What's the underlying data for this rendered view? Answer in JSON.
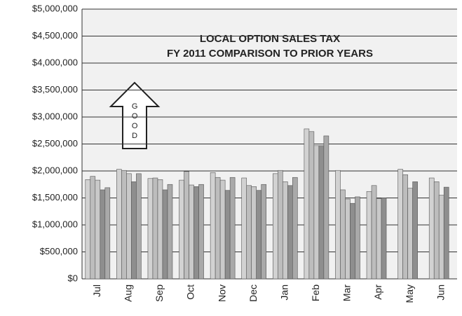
{
  "chart_data": {
    "type": "bar",
    "title": [
      "LOCAL OPTION SALES TAX",
      "FY 2011 COMPARISON TO PRIOR YEARS"
    ],
    "annotation": "GOOD",
    "categories": [
      "Jul",
      "Aug",
      "Sep",
      "Oct",
      "Nov",
      "Dec",
      "Jan",
      "Feb",
      "Mar",
      "Apr",
      "May",
      "Jun"
    ],
    "series": [
      {
        "color": "#d2d2d2",
        "values": [
          1840000,
          2030000,
          1860000,
          1830000,
          1970000,
          1870000,
          1950000,
          2780000,
          2010000,
          1620000,
          2030000,
          1870000
        ]
      },
      {
        "color": "#bdbdbd",
        "values": [
          1900000,
          2010000,
          1870000,
          1990000,
          1880000,
          1730000,
          2010000,
          2730000,
          1650000,
          1730000,
          1930000,
          1800000
        ]
      },
      {
        "color": "#c9c9c9",
        "values": [
          1830000,
          1950000,
          1840000,
          1740000,
          1830000,
          1710000,
          1800000,
          2470000,
          1480000,
          1490000,
          1680000,
          1550000
        ]
      },
      {
        "color": "#8e8e8e",
        "values": [
          1650000,
          1800000,
          1650000,
          1710000,
          1640000,
          1640000,
          1730000,
          2470000,
          1400000,
          1500000,
          1800000,
          1700000
        ]
      },
      {
        "color": "#a9a9a9",
        "values": [
          1690000,
          1950000,
          1750000,
          1750000,
          1880000,
          1750000,
          1880000,
          2650000,
          1520000,
          null,
          null,
          null
        ]
      }
    ],
    "ylim": [
      0,
      5000000
    ],
    "yticks": [
      {
        "value": 0,
        "label": "$0"
      },
      {
        "value": 500000,
        "label": "$500,000"
      },
      {
        "value": 1000000,
        "label": "$1,000,000"
      },
      {
        "value": 1500000,
        "label": "$1,500,000"
      },
      {
        "value": 2000000,
        "label": "$2,000,000"
      },
      {
        "value": 2500000,
        "label": "$2,500,000"
      },
      {
        "value": 3000000,
        "label": "$3,000,000"
      },
      {
        "value": 3500000,
        "label": "$3,500,000"
      },
      {
        "value": 4000000,
        "label": "$4,000,000"
      },
      {
        "value": 4500000,
        "label": "$4,500,000"
      },
      {
        "value": 5000000,
        "label": "$5,000,000"
      }
    ],
    "grid": true
  }
}
